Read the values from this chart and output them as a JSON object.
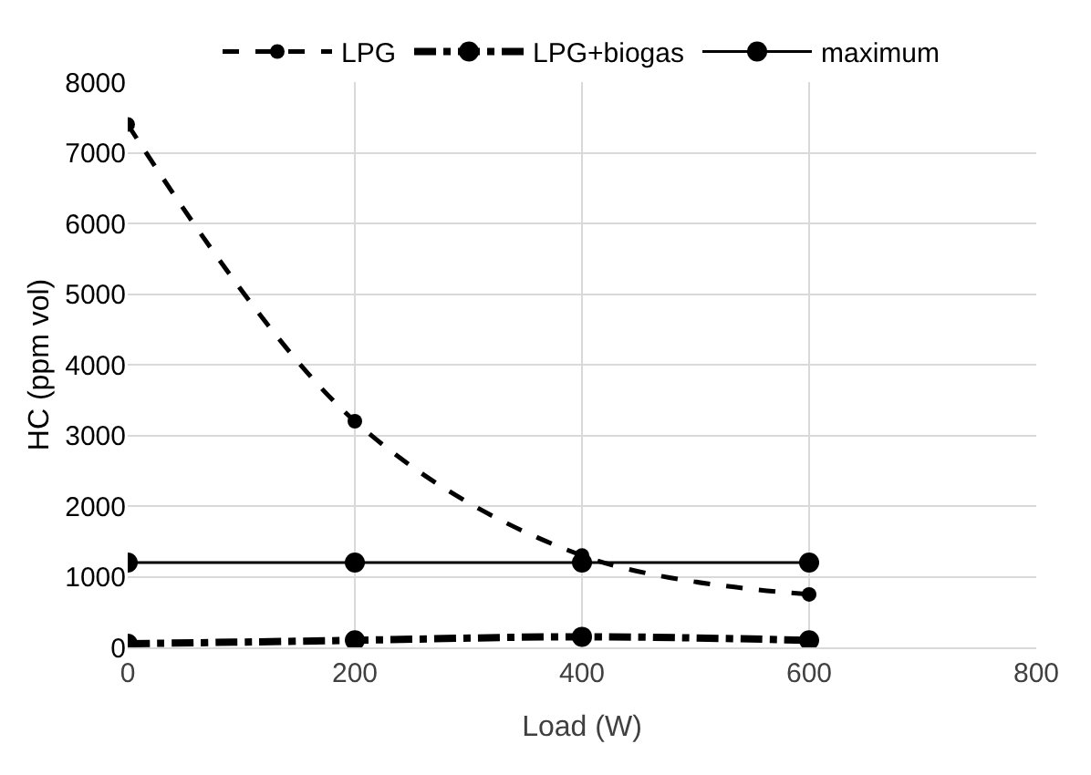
{
  "chart_data": {
    "type": "line",
    "xlabel": "Load (W)",
    "ylabel": "HC (ppm vol)",
    "x": [
      0,
      200,
      400,
      600
    ],
    "series": [
      {
        "name": "LPG",
        "color": "#000000",
        "values": [
          7400,
          3200,
          1300,
          750
        ],
        "line_style": "dashed"
      },
      {
        "name": "LPG+biogas",
        "color": "#000000",
        "values": [
          50,
          100,
          150,
          100
        ],
        "line_style": "dashdot"
      },
      {
        "name": "maximum",
        "color": "#000000",
        "values": [
          1200,
          1200,
          1200,
          1200
        ],
        "line_style": "solid"
      }
    ],
    "xlim": [
      0,
      800
    ],
    "xticks": [
      0,
      200,
      400,
      600,
      800
    ],
    "ylim": [
      0,
      8000
    ],
    "yticks": [
      0,
      1000,
      2000,
      3000,
      4000,
      5000,
      6000,
      7000,
      8000
    ],
    "grid": true,
    "legend": "top",
    "marker": "circle"
  }
}
